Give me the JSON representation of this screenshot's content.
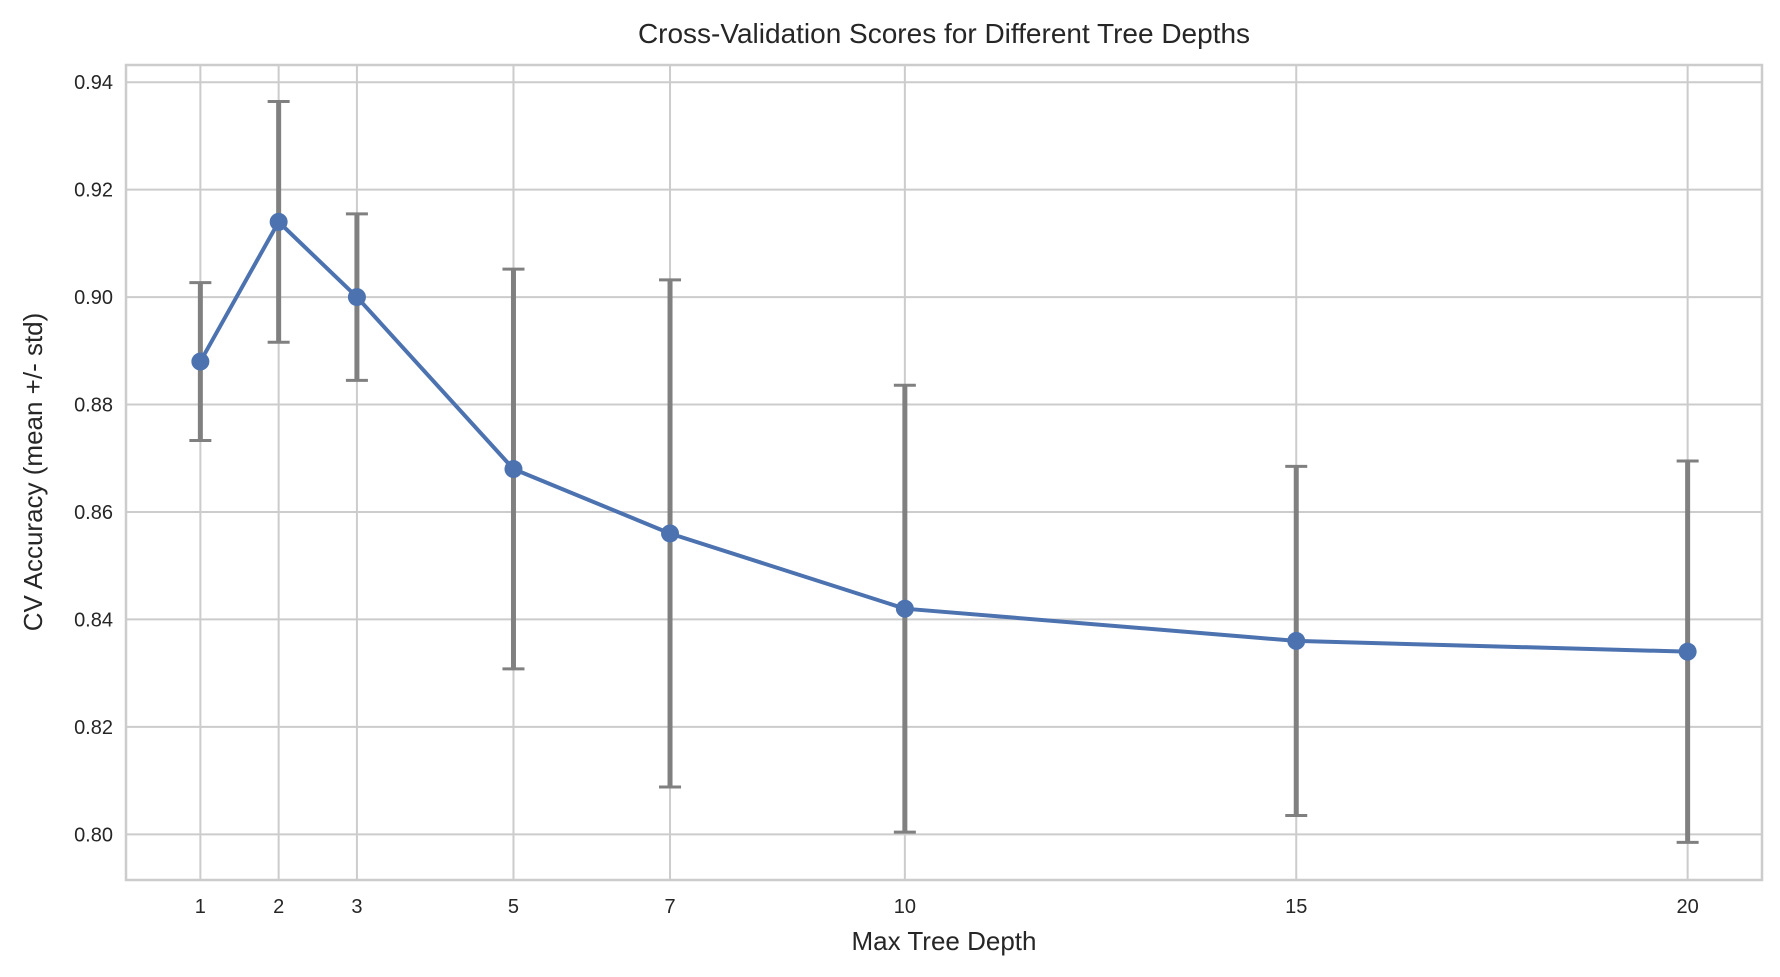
{
  "chart_data": {
    "type": "line",
    "title": "Cross-Validation Scores for Different Tree Depths",
    "xlabel": "Max Tree Depth",
    "ylabel": "CV Accuracy (mean +/- std)",
    "x": [
      1,
      2,
      3,
      5,
      7,
      10,
      15,
      20
    ],
    "series": [
      {
        "name": "CV Accuracy",
        "values": [
          0.888,
          0.914,
          0.9,
          0.868,
          0.856,
          0.842,
          0.836,
          0.834
        ],
        "error": [
          0.0147,
          0.0224,
          0.0155,
          0.0372,
          0.0472,
          0.0416,
          0.0325,
          0.0355
        ],
        "color": "#4C72B0",
        "marker": "circle",
        "error_color": "#808080"
      }
    ],
    "xticks": [
      1,
      2,
      3,
      5,
      7,
      10,
      15,
      20
    ],
    "xtick_labels": [
      "1",
      "2",
      "3",
      "5",
      "7",
      "10",
      "15",
      "20"
    ],
    "yticks": [
      0.8,
      0.82,
      0.84,
      0.86,
      0.88,
      0.9,
      0.92,
      0.94
    ],
    "ytick_labels": [
      "0.80",
      "0.82",
      "0.84",
      "0.86",
      "0.88",
      "0.90",
      "0.92",
      "0.94"
    ],
    "xlim": [
      0.05,
      20.95
    ],
    "ylim": [
      0.7915,
      0.9432
    ],
    "grid": true,
    "legend": "none",
    "colors": {
      "grid": "#cccccc",
      "spine": "#cccccc",
      "text": "#262626"
    }
  }
}
